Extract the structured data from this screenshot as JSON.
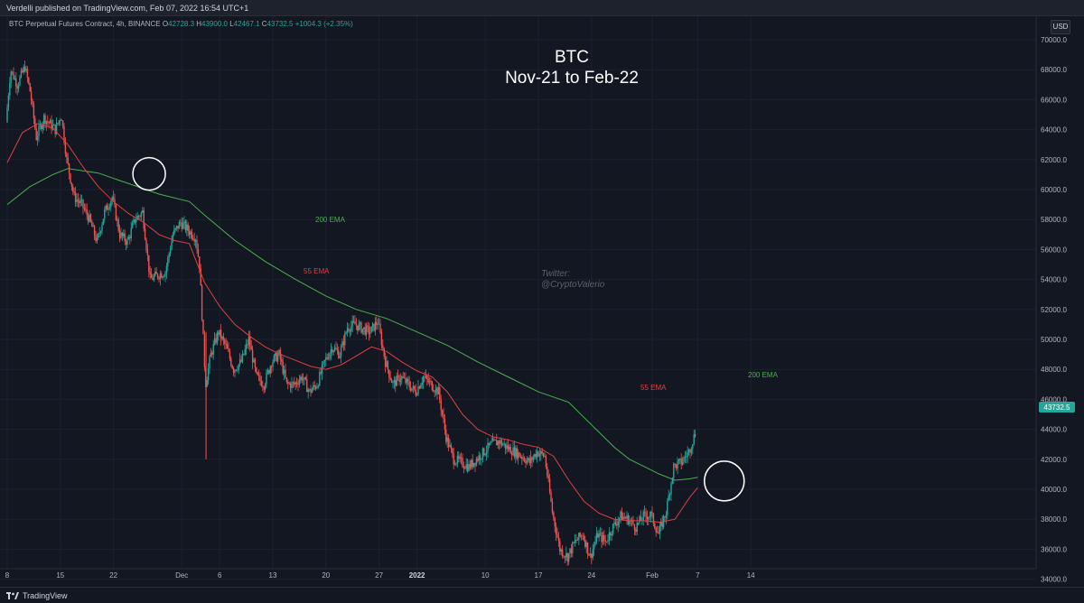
{
  "header": {
    "publisher": "Verdelli published on TradingView.com, Feb 07, 2022 16:54 UTC+1"
  },
  "legend": {
    "symbol": "BTC Perpetual Futures Contract, 4h, BINANCE",
    "open_key": "O",
    "open": "42728.3",
    "high_key": "H",
    "high": "43900.0",
    "low_key": "L",
    "low": "42467.1",
    "close_key": "C",
    "close": "43732.5",
    "change": "+1004.3 (+2.35%)"
  },
  "annotations": {
    "title_line1": "BTC",
    "title_line2": "Nov-21 to Feb-22",
    "watermark_line1": "Twitter:",
    "watermark_line2": "@CryptoValerio",
    "ema200_label": "200 EMA",
    "ema55_label": "55 EMA",
    "currency": "USD",
    "last_price": "43732.5"
  },
  "footer": {
    "brand": "TradingView"
  },
  "colors": {
    "background": "#131722",
    "up": "#26a69a",
    "down": "#ef5350",
    "ema55": "#e04040",
    "ema200": "#4caf50",
    "price_tag": "#26a69a"
  },
  "chart_data": {
    "type": "candlestick",
    "interval": "4h",
    "ylim": [
      33000,
      71000
    ],
    "yticks": [
      34000,
      36000,
      38000,
      40000,
      42000,
      44000,
      46000,
      48000,
      50000,
      52000,
      54000,
      56000,
      58000,
      60000,
      62000,
      64000,
      66000,
      68000,
      70000
    ],
    "ytick_labels": [
      "34000.0",
      "36000.0",
      "38000.0",
      "40000.0",
      "42000.0",
      "44000.0",
      "46000.0",
      "48000.0",
      "50000.0",
      "52000.0",
      "54000.0",
      "56000.0",
      "58000.0",
      "60000.0",
      "62000.0",
      "64000.0",
      "66000.0",
      "68000.0",
      "70000.0"
    ],
    "xticks": [
      {
        "label": "8",
        "day": 0,
        "bold": false
      },
      {
        "label": "15",
        "day": 7,
        "bold": false
      },
      {
        "label": "22",
        "day": 14,
        "bold": false
      },
      {
        "label": "Dec",
        "day": 23,
        "bold": false
      },
      {
        "label": "6",
        "day": 28,
        "bold": false
      },
      {
        "label": "13",
        "day": 35,
        "bold": false
      },
      {
        "label": "20",
        "day": 42,
        "bold": false
      },
      {
        "label": "27",
        "day": 49,
        "bold": false
      },
      {
        "label": "2022",
        "day": 54,
        "bold": true
      },
      {
        "label": "10",
        "day": 63,
        "bold": false
      },
      {
        "label": "17",
        "day": 70,
        "bold": false
      },
      {
        "label": "24",
        "day": 77,
        "bold": false
      },
      {
        "label": "Feb",
        "day": 85,
        "bold": false
      },
      {
        "label": "7",
        "day": 91,
        "bold": false
      },
      {
        "label": "14",
        "day": 98,
        "bold": false
      }
    ],
    "price_path": [
      [
        0,
        64500
      ],
      [
        0.6,
        68000
      ],
      [
        1.5,
        67000
      ],
      [
        2.5,
        68200
      ],
      [
        3.2,
        66500
      ],
      [
        4,
        63500
      ],
      [
        5,
        64800
      ],
      [
        6.5,
        64000
      ],
      [
        7.3,
        65000
      ],
      [
        8,
        62000
      ],
      [
        9,
        59500
      ],
      [
        10,
        59000
      ],
      [
        11,
        58000
      ],
      [
        12,
        56500
      ],
      [
        13,
        58500
      ],
      [
        14,
        59500
      ],
      [
        15,
        57000
      ],
      [
        16,
        56500
      ],
      [
        17,
        58000
      ],
      [
        18,
        58500
      ],
      [
        19,
        54000
      ],
      [
        20,
        54300
      ],
      [
        21,
        54500
      ],
      [
        22,
        57000
      ],
      [
        23,
        57800
      ],
      [
        24,
        57300
      ],
      [
        25,
        56800
      ],
      [
        25.5,
        55000
      ],
      [
        26,
        50000
      ],
      [
        26.3,
        47000
      ],
      [
        27,
        49000
      ],
      [
        28,
        50500
      ],
      [
        29,
        49500
      ],
      [
        30,
        48000
      ],
      [
        31,
        48500
      ],
      [
        32,
        50000
      ],
      [
        33,
        47500
      ],
      [
        34,
        47000
      ],
      [
        35,
        48500
      ],
      [
        36,
        49000
      ],
      [
        37,
        47000
      ],
      [
        38,
        47000
      ],
      [
        39,
        47500
      ],
      [
        40,
        46500
      ],
      [
        41,
        47000
      ],
      [
        42,
        48500
      ],
      [
        43,
        49500
      ],
      [
        44,
        49000
      ],
      [
        45,
        50800
      ],
      [
        46,
        51000
      ],
      [
        47,
        50700
      ],
      [
        48,
        50500
      ],
      [
        49,
        51200
      ],
      [
        50,
        48500
      ],
      [
        51,
        47000
      ],
      [
        52,
        47500
      ],
      [
        53,
        47000
      ],
      [
        54,
        46500
      ],
      [
        55,
        47500
      ],
      [
        56,
        47000
      ],
      [
        57,
        46500
      ],
      [
        58,
        43500
      ],
      [
        59,
        42000
      ],
      [
        60,
        41800
      ],
      [
        61,
        41500
      ],
      [
        62,
        42000
      ],
      [
        63,
        42500
      ],
      [
        64,
        43000
      ],
      [
        65,
        43200
      ],
      [
        66,
        42800
      ],
      [
        67,
        42500
      ],
      [
        68,
        42200
      ],
      [
        69,
        41800
      ],
      [
        70,
        42500
      ],
      [
        71,
        42200
      ],
      [
        72,
        38500
      ],
      [
        73,
        36000
      ],
      [
        74,
        35500
      ],
      [
        75,
        36500
      ],
      [
        76,
        37000
      ],
      [
        77,
        35500
      ],
      [
        78,
        37000
      ],
      [
        79,
        36500
      ],
      [
        80,
        37500
      ],
      [
        81,
        38200
      ],
      [
        82,
        38000
      ],
      [
        83,
        37500
      ],
      [
        84,
        38200
      ],
      [
        85,
        38300
      ],
      [
        86,
        37000
      ],
      [
        87,
        38500
      ],
      [
        88,
        41500
      ],
      [
        89,
        41800
      ],
      [
        90,
        42500
      ],
      [
        90.8,
        43732
      ]
    ],
    "ema55": [
      [
        0,
        61800
      ],
      [
        2,
        63800
      ],
      [
        4,
        64400
      ],
      [
        6,
        64100
      ],
      [
        8,
        63000
      ],
      [
        10,
        61500
      ],
      [
        12,
        60200
      ],
      [
        14,
        59200
      ],
      [
        16,
        58400
      ],
      [
        18,
        57800
      ],
      [
        20,
        57000
      ],
      [
        22,
        56600
      ],
      [
        24,
        56400
      ],
      [
        26,
        53800
      ],
      [
        28,
        52200
      ],
      [
        30,
        51000
      ],
      [
        32,
        50200
      ],
      [
        34,
        49500
      ],
      [
        36,
        49000
      ],
      [
        38,
        48600
      ],
      [
        40,
        48200
      ],
      [
        42,
        48000
      ],
      [
        44,
        48300
      ],
      [
        46,
        48900
      ],
      [
        48,
        49500
      ],
      [
        50,
        49200
      ],
      [
        52,
        48500
      ],
      [
        54,
        47900
      ],
      [
        56,
        47500
      ],
      [
        58,
        46500
      ],
      [
        60,
        45000
      ],
      [
        62,
        44000
      ],
      [
        64,
        43500
      ],
      [
        66,
        43300
      ],
      [
        68,
        43000
      ],
      [
        70,
        42800
      ],
      [
        72,
        42200
      ],
      [
        74,
        40600
      ],
      [
        76,
        39200
      ],
      [
        78,
        38400
      ],
      [
        80,
        38000
      ],
      [
        82,
        37900
      ],
      [
        84,
        37900
      ],
      [
        86,
        37800
      ],
      [
        88,
        38000
      ],
      [
        90,
        39500
      ],
      [
        91,
        40100
      ]
    ],
    "ema200": [
      [
        0,
        59000
      ],
      [
        3,
        60200
      ],
      [
        6,
        61000
      ],
      [
        8,
        61400
      ],
      [
        12,
        61100
      ],
      [
        16,
        60400
      ],
      [
        20,
        59700
      ],
      [
        24,
        59200
      ],
      [
        26,
        58300
      ],
      [
        30,
        56600
      ],
      [
        34,
        55200
      ],
      [
        38,
        54000
      ],
      [
        42,
        52900
      ],
      [
        46,
        52000
      ],
      [
        50,
        51400
      ],
      [
        54,
        50500
      ],
      [
        58,
        49600
      ],
      [
        62,
        48500
      ],
      [
        66,
        47500
      ],
      [
        70,
        46500
      ],
      [
        74,
        45800
      ],
      [
        76,
        44800
      ],
      [
        78,
        43800
      ],
      [
        80,
        42800
      ],
      [
        82,
        42000
      ],
      [
        84,
        41500
      ],
      [
        86,
        41000
      ],
      [
        88,
        40600
      ],
      [
        90,
        40700
      ],
      [
        91,
        40800
      ]
    ],
    "circles": [
      {
        "day": 18.7,
        "price": 61050
      },
      {
        "day": 94.5,
        "price": 40550
      }
    ]
  }
}
